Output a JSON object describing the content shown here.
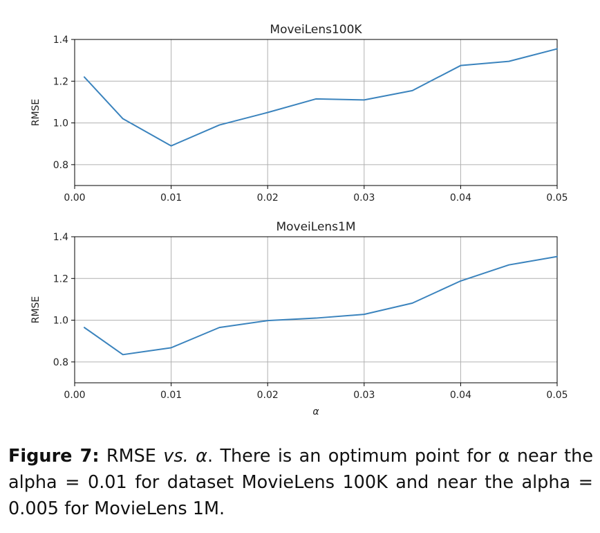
{
  "chart_data": [
    {
      "type": "line",
      "title": "MoveiLens100K",
      "xlabel": "",
      "ylabel": "RMSE",
      "xlim": [
        0.0,
        0.05
      ],
      "ylim": [
        0.7,
        1.4
      ],
      "xticks": [
        0.0,
        0.01,
        0.02,
        0.03,
        0.04,
        0.05
      ],
      "xtick_labels": [
        "0.00",
        "0.01",
        "0.02",
        "0.03",
        "0.04",
        "0.05"
      ],
      "yticks": [
        0.8,
        1.0,
        1.2,
        1.4
      ],
      "ytick_labels": [
        "0.8",
        "1.0",
        "1.2",
        "1.4"
      ],
      "grid": true,
      "color": "#3a83bd",
      "series": [
        {
          "x": [
            0.001,
            0.005,
            0.01,
            0.015,
            0.02,
            0.025,
            0.03,
            0.035,
            0.04,
            0.045,
            0.05
          ],
          "y": [
            1.22,
            1.02,
            0.89,
            0.99,
            1.05,
            1.115,
            1.11,
            1.155,
            1.275,
            1.295,
            1.355
          ]
        }
      ]
    },
    {
      "type": "line",
      "title": "MoveiLens1M",
      "xlabel": "α",
      "ylabel": "RMSE",
      "xlim": [
        0.0,
        0.05
      ],
      "ylim": [
        0.7,
        1.4
      ],
      "xticks": [
        0.0,
        0.01,
        0.02,
        0.03,
        0.04,
        0.05
      ],
      "xtick_labels": [
        "0.00",
        "0.01",
        "0.02",
        "0.03",
        "0.04",
        "0.05"
      ],
      "yticks": [
        0.8,
        1.0,
        1.2,
        1.4
      ],
      "ytick_labels": [
        "0.8",
        "1.0",
        "1.2",
        "1.4"
      ],
      "grid": true,
      "color": "#3a83bd",
      "series": [
        {
          "x": [
            0.001,
            0.005,
            0.01,
            0.015,
            0.02,
            0.025,
            0.03,
            0.035,
            0.04,
            0.045,
            0.05
          ],
          "y": [
            0.965,
            0.835,
            0.868,
            0.965,
            0.998,
            1.01,
            1.028,
            1.082,
            1.188,
            1.265,
            1.305
          ]
        }
      ]
    }
  ],
  "caption": {
    "label": "Figure 7:",
    "text_1": " RMSE ",
    "vs": "vs. α",
    "text_2": ". There is an optimum point for α near the alpha = 0.01 for dataset MovieLens 100K and near the alpha = 0.005 for MovieLens 1M."
  }
}
